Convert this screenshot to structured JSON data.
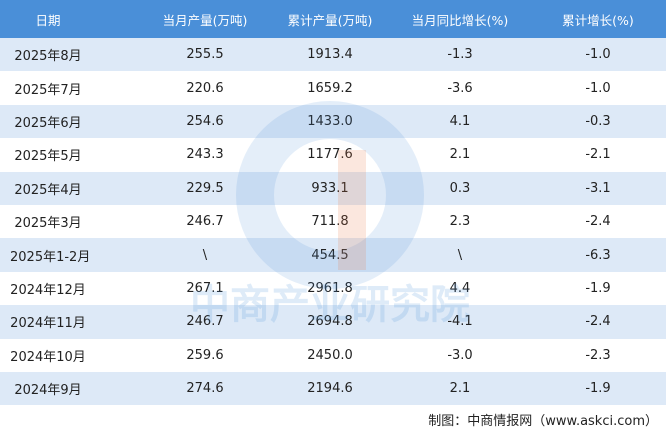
{
  "table": {
    "header": [
      "日期",
      "当月产量(万吨)",
      "累计产量(万吨)",
      "当月同比增长(%)",
      "累计增长(%)"
    ],
    "rows": [
      [
        "2025年8月",
        "255.5",
        "1913.4",
        "-1.3",
        "-1.0"
      ],
      [
        "2025年7月",
        "220.6",
        "1659.2",
        "-3.6",
        "-1.0"
      ],
      [
        "2025年6月",
        "254.6",
        "1433.0",
        "4.1",
        "-0.3"
      ],
      [
        "2025年5月",
        "243.3",
        "1177.6",
        "2.1",
        "-2.1"
      ],
      [
        "2025年4月",
        "229.5",
        "933.1",
        "0.3",
        "-3.1"
      ],
      [
        "2025年3月",
        "246.7",
        "711.8",
        "2.3",
        "-2.4"
      ],
      [
        "2025年1-2月",
        "\\",
        "454.5",
        "\\",
        "-6.3"
      ],
      [
        "2024年12月",
        "267.1",
        "2961.8",
        "4.4",
        "-1.9"
      ],
      [
        "2024年11月",
        "246.7",
        "2694.8",
        "-4.1",
        "-2.4"
      ],
      [
        "2024年10月",
        "259.6",
        "2450.0",
        "-3.0",
        "-2.3"
      ],
      [
        "2024年9月",
        "274.6",
        "2194.6",
        "2.1",
        "-1.9"
      ]
    ]
  },
  "watermark": "中商产业研究院",
  "footer": "制图：中商情报网（www.askci.com）"
}
